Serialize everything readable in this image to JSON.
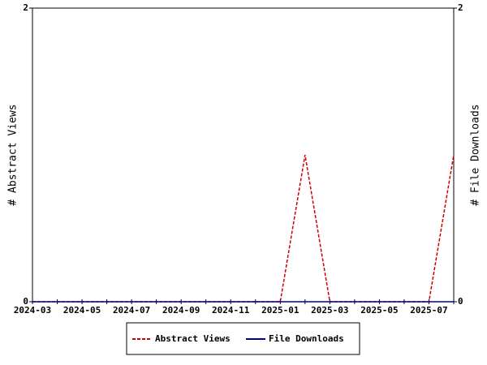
{
  "chart_data": {
    "type": "line",
    "categories": [
      "2024-03",
      null,
      "2024-05",
      null,
      "2024-07",
      null,
      "2024-09",
      null,
      "2024-11",
      null,
      "2025-01",
      null,
      "2025-03",
      null,
      "2025-05",
      null,
      "2025-07",
      null
    ],
    "series": [
      {
        "name": "Abstract Views",
        "color": "#cc0000",
        "dashed": true,
        "values": [
          0,
          0,
          0,
          0,
          0,
          0,
          0,
          0,
          0,
          0,
          0,
          1,
          0,
          0,
          0,
          0,
          0,
          1
        ]
      },
      {
        "name": "File Downloads",
        "color": "#000099",
        "dashed": false,
        "axis": "y2",
        "values": [
          0,
          0,
          0,
          0,
          0,
          0,
          0,
          0,
          0,
          0,
          0,
          0,
          0,
          0,
          0,
          0,
          0,
          0
        ]
      }
    ],
    "ylabel": "# Abstract Views",
    "y2label": "# File Downloads",
    "ylim": [
      0,
      2
    ],
    "yticks": [
      0,
      2
    ],
    "y2lim": [
      0,
      2
    ],
    "y2ticks": [
      0,
      2
    ],
    "legend": "bottom"
  }
}
